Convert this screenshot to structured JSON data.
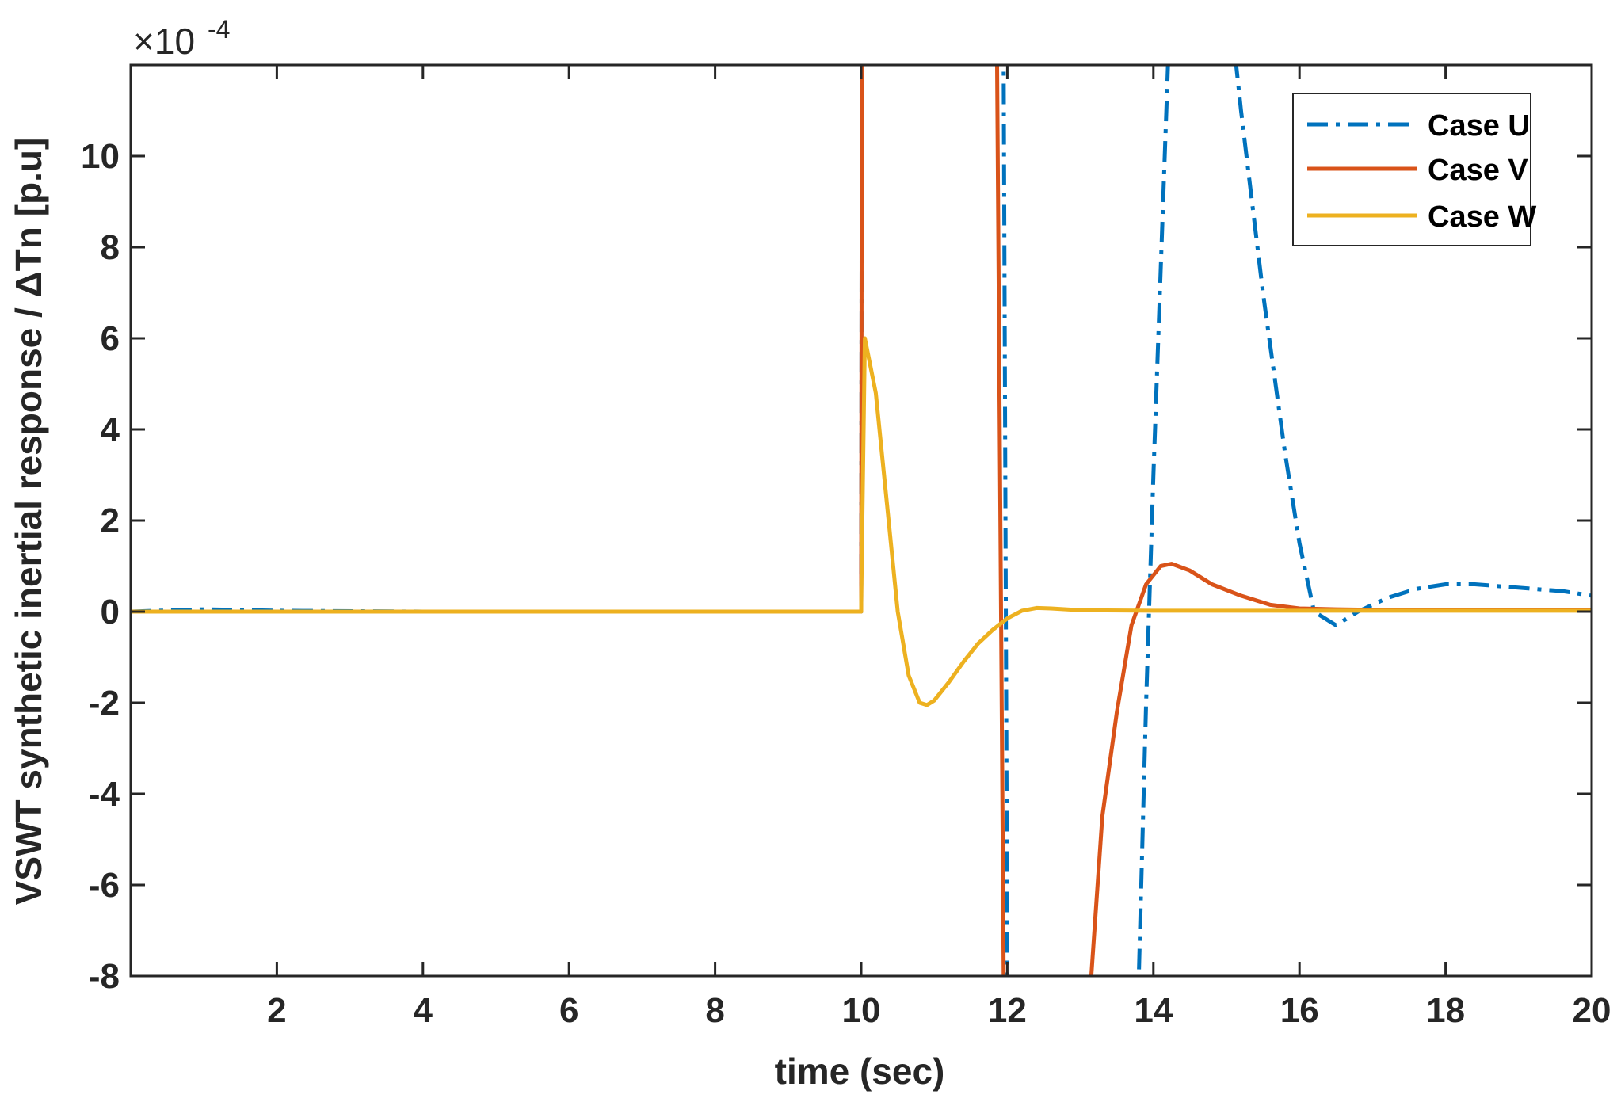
{
  "chart_data": {
    "type": "line",
    "xlabel": "time (sec)",
    "ylabel": "VSWT synthetic inertial response / ΔTn [p.u]",
    "y_multiplier_base": "×10",
    "y_multiplier_exp": "-4",
    "xlim": [
      0,
      20
    ],
    "ylim": [
      -8,
      12
    ],
    "xticks": [
      "2",
      "4",
      "6",
      "8",
      "10",
      "12",
      "14",
      "16",
      "18",
      "20"
    ],
    "yticks": [
      "-8",
      "-6",
      "-4",
      "-2",
      "0",
      "2",
      "4",
      "6",
      "8",
      "10"
    ],
    "xtick_values": [
      2,
      4,
      6,
      8,
      10,
      12,
      14,
      16,
      18,
      20
    ],
    "ytick_values": [
      -8,
      -6,
      -4,
      -2,
      0,
      2,
      4,
      6,
      8,
      10
    ],
    "grid": false,
    "legend_position": "top-right",
    "series": [
      {
        "name": "Case U",
        "color": "#0072BD",
        "style": "dash-dot",
        "x": [
          0,
          1,
          2,
          4,
          6,
          8,
          10,
          10.01,
          11.9,
          11.95,
          12.0,
          12.01,
          13.5,
          13.8,
          13.9,
          14.0,
          14.2,
          14.3,
          15.0,
          15.2,
          15.5,
          15.8,
          16.0,
          16.2,
          16.5,
          16.8,
          17.2,
          17.6,
          18.0,
          18.4,
          18.8,
          19.2,
          19.6,
          20.0
        ],
        "y": [
          0,
          0.05,
          0.02,
          0,
          0,
          0,
          0,
          14,
          14,
          12,
          -8,
          -12,
          -12,
          -8,
          -2,
          3,
          12,
          14,
          14,
          11,
          7,
          3.5,
          1.5,
          0,
          -0.3,
          0,
          0.3,
          0.5,
          0.6,
          0.6,
          0.55,
          0.5,
          0.45,
          0.35
        ]
      },
      {
        "name": "Case V",
        "color": "#D95319",
        "style": "solid",
        "x": [
          0,
          2,
          4,
          6,
          8,
          10,
          10.0,
          10.01,
          11.85,
          11.86,
          11.95,
          11.97,
          13.1,
          13.15,
          13.3,
          13.5,
          13.7,
          13.9,
          14.1,
          14.25,
          14.5,
          14.8,
          15.2,
          15.6,
          16.0,
          16.5,
          17.0,
          18.0,
          19.0,
          20.0
        ],
        "y": [
          0,
          0,
          0,
          0,
          0,
          0,
          0,
          14,
          14,
          12,
          -8,
          -12,
          -12,
          -8,
          -4.5,
          -2.2,
          -0.3,
          0.6,
          1.0,
          1.05,
          0.9,
          0.6,
          0.35,
          0.15,
          0.07,
          0.05,
          0.04,
          0.03,
          0.03,
          0.03
        ]
      },
      {
        "name": "Case W",
        "color": "#EDB120",
        "style": "solid",
        "x": [
          0,
          2,
          4,
          6,
          8,
          10,
          10.0,
          10.05,
          10.2,
          10.35,
          10.5,
          10.65,
          10.8,
          10.9,
          11.0,
          11.2,
          11.4,
          11.6,
          11.8,
          12.0,
          12.2,
          12.4,
          12.6,
          13.0,
          14.0,
          16.0,
          18.0,
          20.0
        ],
        "y": [
          0,
          0,
          0,
          0,
          0,
          0,
          0.2,
          6.0,
          4.8,
          2.4,
          0.0,
          -1.4,
          -2.0,
          -2.05,
          -1.95,
          -1.55,
          -1.1,
          -0.7,
          -0.4,
          -0.15,
          0.02,
          0.08,
          0.07,
          0.03,
          0.02,
          0.02,
          0.02,
          0.02
        ]
      }
    ]
  }
}
